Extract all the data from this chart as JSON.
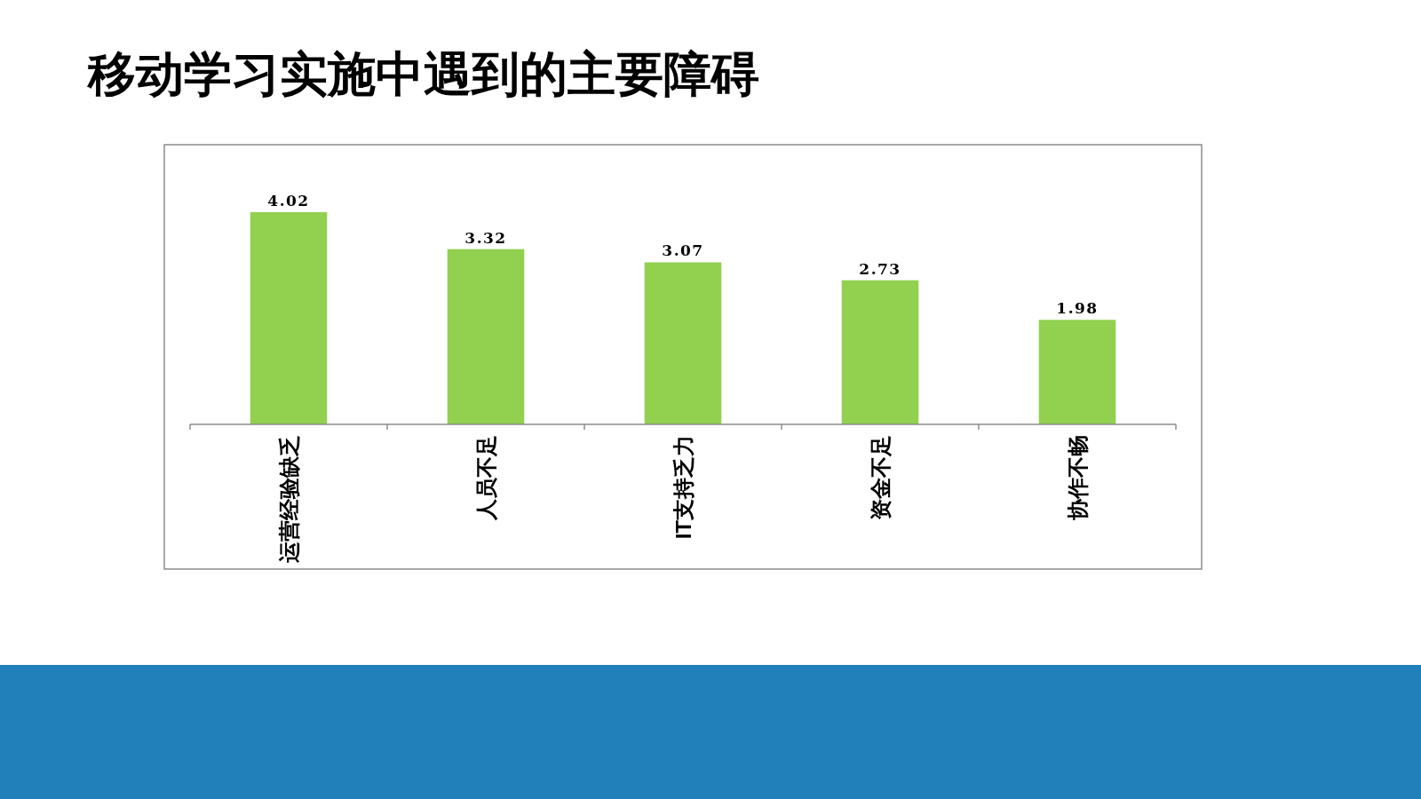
{
  "chart_data": {
    "type": "bar",
    "title": "移动学习实施中遇到的主要障碍",
    "categories": [
      "运营经验缺乏",
      "人员不足",
      "IT支持乏力",
      "资金不足",
      "协作不畅"
    ],
    "values": [
      4.02,
      3.32,
      3.07,
      2.73,
      1.98
    ],
    "color": "#92d050",
    "data_labels": true
  }
}
